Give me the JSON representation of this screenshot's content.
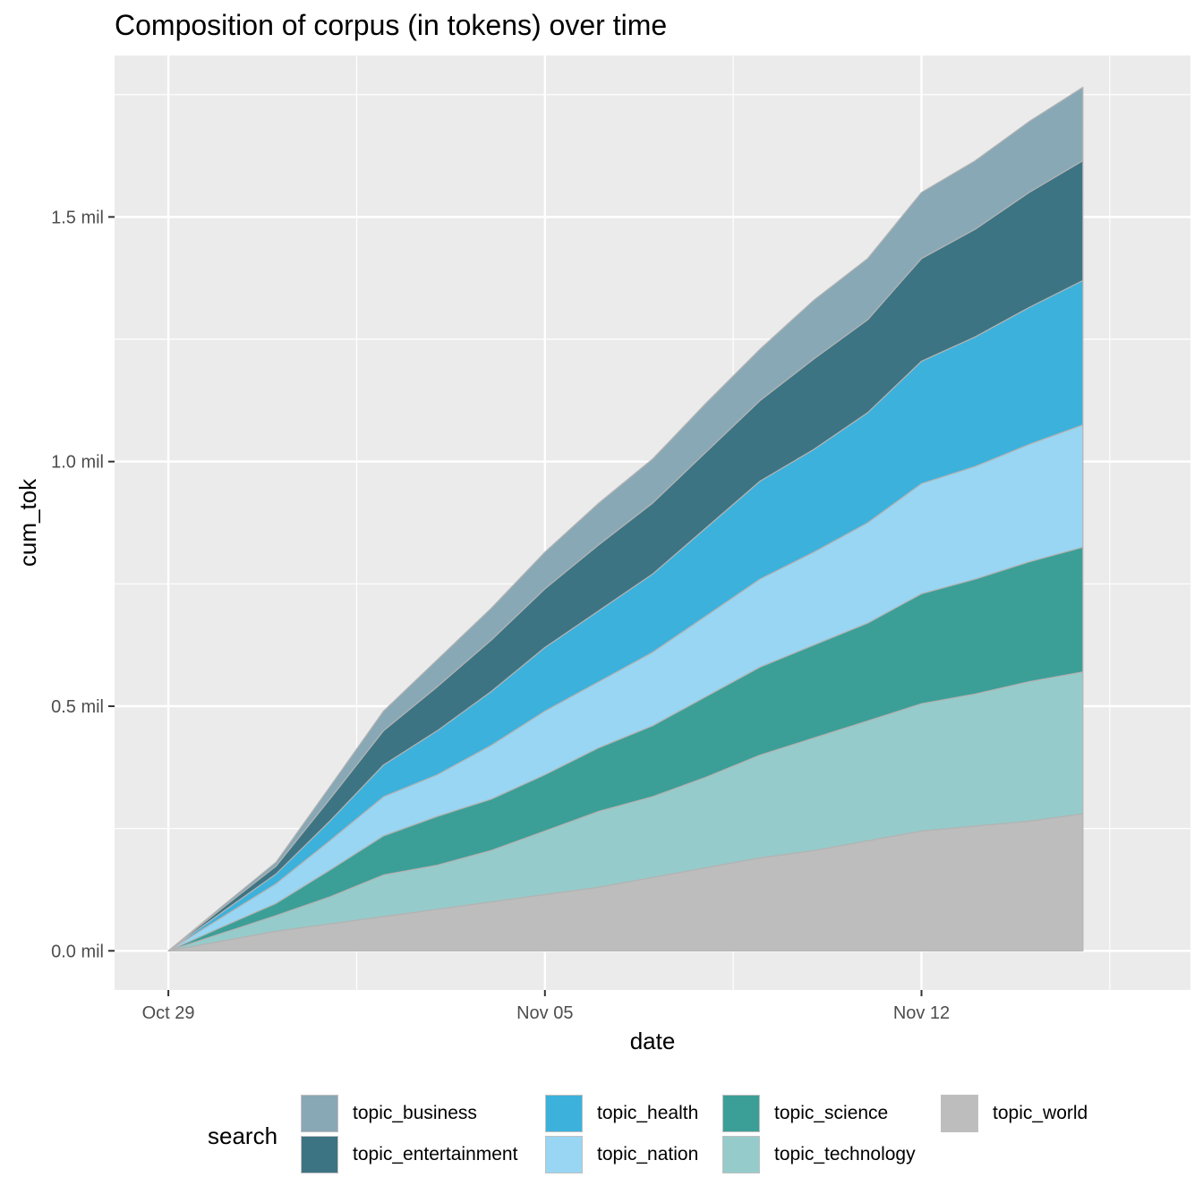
{
  "chart_data": {
    "type": "area",
    "stacked": true,
    "title": "Composition of corpus (in tokens) over time",
    "xlabel": "date",
    "ylabel": "cum_tok",
    "x_ticks": [
      "Oct 29",
      "Nov 05",
      "Nov 12"
    ],
    "y_ticks": [
      "0.0 mil",
      "0.5 mil",
      "1.0 mil",
      "1.5 mil"
    ],
    "xlim": [
      "2023-10-28",
      "2023-11-17"
    ],
    "ylim": [
      -0.08,
      1.83
    ],
    "y_unit": "mil",
    "grid": true,
    "legend_position": "bottom",
    "legend_title": "search",
    "x": [
      "2023-10-29",
      "2023-10-30",
      "2023-10-31",
      "2023-11-01",
      "2023-11-02",
      "2023-11-03",
      "2023-11-04",
      "2023-11-05",
      "2023-11-06",
      "2023-11-07",
      "2023-11-08",
      "2023-11-09",
      "2023-11-10",
      "2023-11-11",
      "2023-11-12",
      "2023-11-13",
      "2023-11-14",
      "2023-11-15"
    ],
    "series": [
      {
        "name": "topic_world",
        "color": "#bdbdbd",
        "values": [
          0.0,
          0.02,
          0.04,
          0.055,
          0.07,
          0.085,
          0.1,
          0.115,
          0.13,
          0.15,
          0.17,
          0.19,
          0.205,
          0.225,
          0.245,
          0.255,
          0.265,
          0.28
        ]
      },
      {
        "name": "topic_technology",
        "color": "#96cbcb",
        "values": [
          0.0,
          0.016,
          0.032,
          0.055,
          0.085,
          0.09,
          0.105,
          0.13,
          0.155,
          0.165,
          0.185,
          0.21,
          0.23,
          0.245,
          0.26,
          0.27,
          0.285,
          0.29
        ]
      },
      {
        "name": "topic_science",
        "color": "#3c9f97",
        "values": [
          0.0,
          0.013,
          0.025,
          0.055,
          0.08,
          0.1,
          0.105,
          0.115,
          0.13,
          0.145,
          0.165,
          0.18,
          0.19,
          0.2,
          0.225,
          0.235,
          0.245,
          0.255
        ]
      },
      {
        "name": "topic_nation",
        "color": "#98d6f3",
        "values": [
          0.0,
          0.02,
          0.04,
          0.06,
          0.08,
          0.085,
          0.11,
          0.13,
          0.135,
          0.15,
          0.165,
          0.18,
          0.19,
          0.205,
          0.225,
          0.23,
          0.24,
          0.25
        ]
      },
      {
        "name": "topic_health",
        "color": "#3cb1dc",
        "values": [
          0.0,
          0.01,
          0.02,
          0.04,
          0.065,
          0.09,
          0.11,
          0.13,
          0.145,
          0.16,
          0.18,
          0.2,
          0.21,
          0.225,
          0.25,
          0.265,
          0.28,
          0.295
        ]
      },
      {
        "name": "topic_entertainment",
        "color": "#3d7483",
        "values": [
          0.0,
          0.008,
          0.016,
          0.045,
          0.07,
          0.09,
          0.105,
          0.12,
          0.135,
          0.145,
          0.155,
          0.165,
          0.185,
          0.19,
          0.21,
          0.22,
          0.235,
          0.245
        ]
      },
      {
        "name": "topic_business",
        "color": "#88a8b6",
        "values": [
          0.0,
          0.004,
          0.008,
          0.025,
          0.04,
          0.055,
          0.065,
          0.075,
          0.085,
          0.09,
          0.1,
          0.105,
          0.12,
          0.125,
          0.135,
          0.14,
          0.145,
          0.15
        ]
      }
    ]
  },
  "legend": {
    "title": "search",
    "items": [
      {
        "label": "topic_business",
        "color": "#88a8b6"
      },
      {
        "label": "topic_entertainment",
        "color": "#3d7483"
      },
      {
        "label": "topic_health",
        "color": "#3cb1dc"
      },
      {
        "label": "topic_nation",
        "color": "#98d6f3"
      },
      {
        "label": "topic_science",
        "color": "#3c9f97"
      },
      {
        "label": "topic_technology",
        "color": "#96cbcb"
      },
      {
        "label": "topic_world",
        "color": "#bdbdbd"
      }
    ]
  }
}
